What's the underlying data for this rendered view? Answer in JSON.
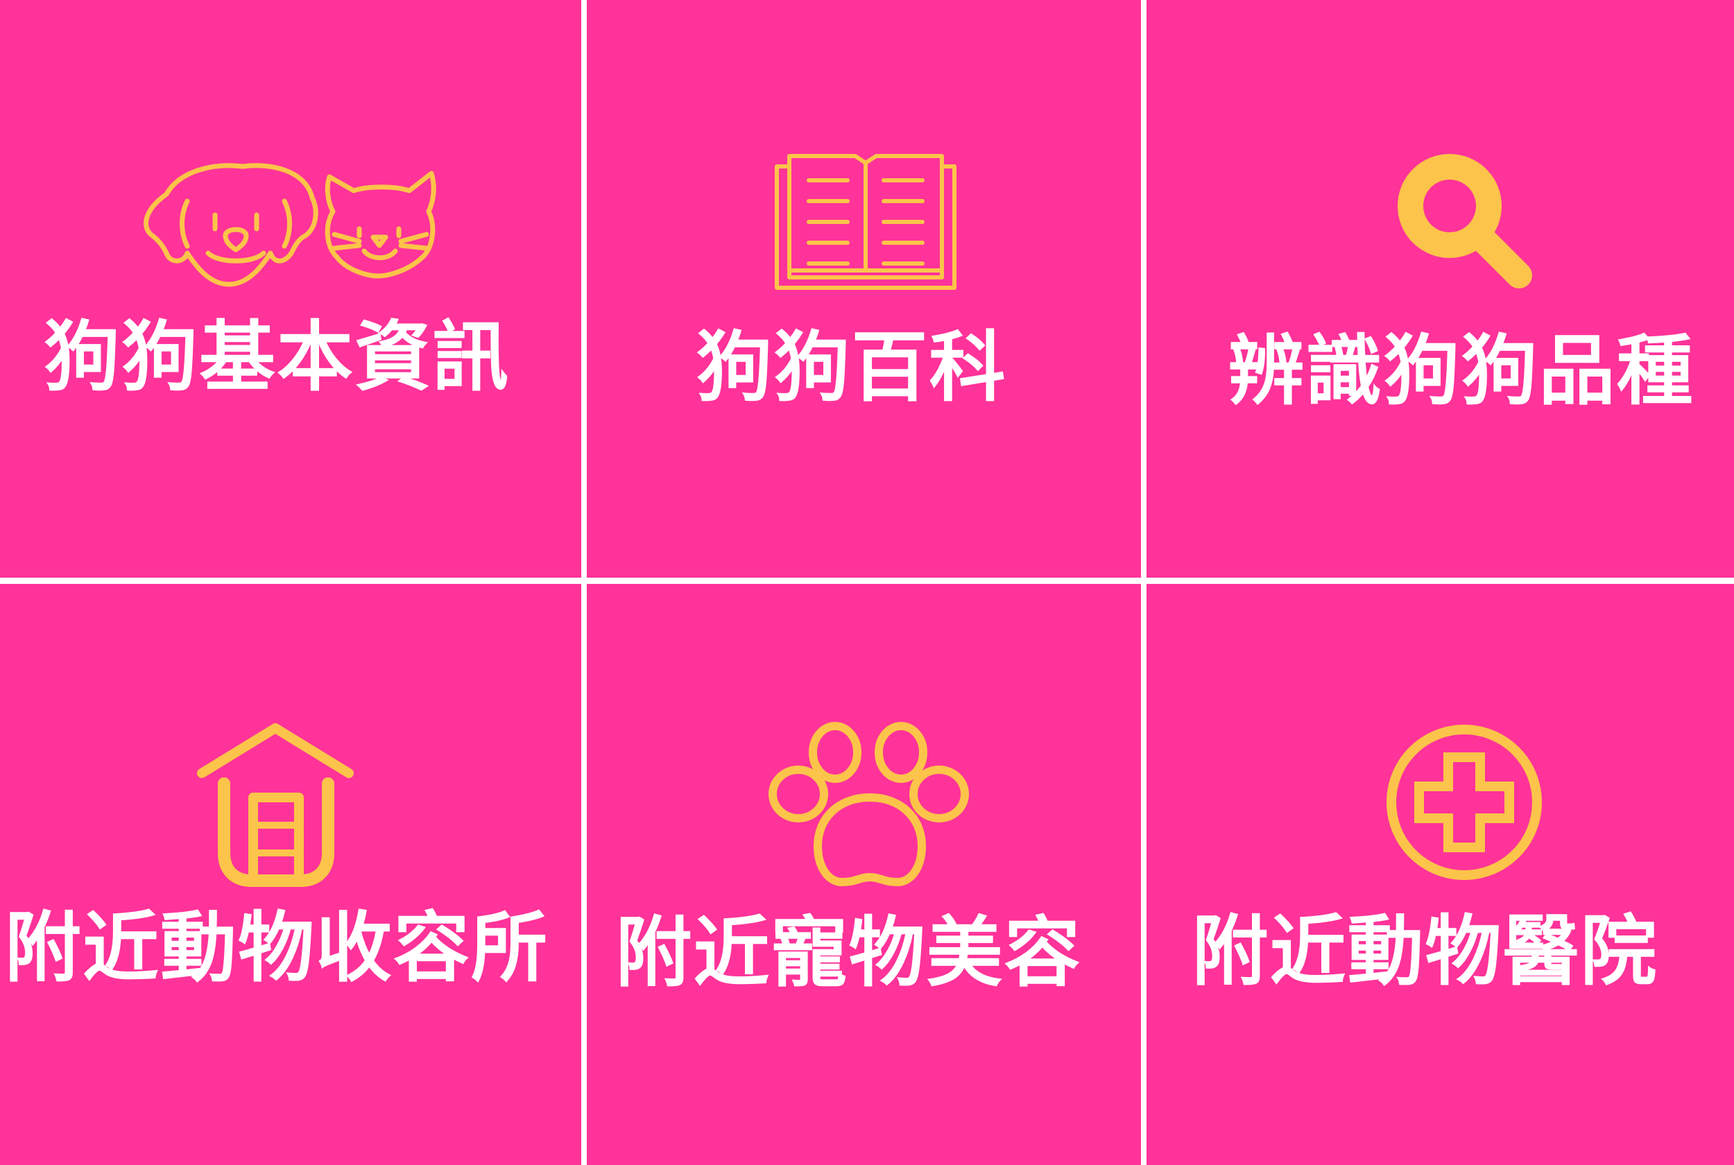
{
  "colors": {
    "tile_background": "#ff3399",
    "icon_color": "#fcc44a",
    "label_color": "#ffffff",
    "divider_color": "#ffffff"
  },
  "menu": {
    "tiles": [
      {
        "label": "狗狗基本資訊",
        "icon": "dog-cat-icon"
      },
      {
        "label": "狗狗百科",
        "icon": "open-book-icon"
      },
      {
        "label": "辨識狗狗品種",
        "icon": "magnifier-icon"
      },
      {
        "label": "附近動物收容所",
        "icon": "shelter-house-icon"
      },
      {
        "label": "附近寵物美容",
        "icon": "paw-icon"
      },
      {
        "label": "附近動物醫院",
        "icon": "medical-cross-icon"
      }
    ]
  }
}
